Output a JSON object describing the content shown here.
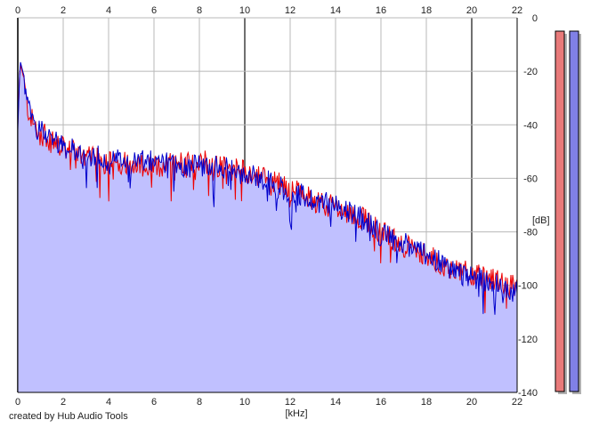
{
  "credit": "created by Hub Audio Tools",
  "colors": {
    "left_channel": "#ee0000",
    "right_channel": "#0000cc",
    "fill": "#c0c0ff",
    "meter_left": "#e87a7a",
    "meter_right": "#8080e6",
    "grid_minor": "#b8b8b8",
    "grid_major": "#707070"
  },
  "chart_data": {
    "type": "area",
    "title": "",
    "xlabel": "[kHz]",
    "ylabel": "[dB]",
    "xlim": [
      0,
      22
    ],
    "ylim": [
      -140,
      0
    ],
    "x_ticks": [
      "0",
      "2",
      "4",
      "6",
      "8",
      "10",
      "12",
      "14",
      "16",
      "18",
      "20",
      "22"
    ],
    "y_ticks": [
      "0",
      "-20",
      "-40",
      "-60",
      "-80",
      "-100",
      "-120",
      "-140"
    ],
    "grid": true,
    "legend": "none",
    "x": [
      0,
      0.1,
      0.25,
      0.4,
      0.7,
      1,
      1.5,
      2,
      3,
      4,
      5,
      6,
      7,
      8,
      9,
      10,
      11,
      12,
      13,
      14,
      14.4,
      15,
      16,
      17,
      18,
      19,
      20,
      21,
      22
    ],
    "series": [
      {
        "values": [
          -40,
          -17,
          -22,
          -33,
          -40,
          -43,
          -46,
          -49,
          -52,
          -54,
          -54,
          -56,
          -54,
          -53,
          -56,
          -57,
          -60,
          -64,
          -68,
          -71,
          -73,
          -74,
          -80,
          -85,
          -89,
          -93,
          -96,
          -98,
          -101
        ]
      },
      {
        "values": [
          -42,
          -16,
          -21,
          -32,
          -40,
          -42,
          -44,
          -48,
          -51,
          -53,
          -54,
          -54,
          -55,
          -55,
          -56,
          -58,
          -61,
          -65,
          -68,
          -70,
          -71,
          -74,
          -81,
          -84,
          -88,
          -94,
          -97,
          -99,
          -103
        ]
      }
    ],
    "meters": [
      {
        "level_db": -140
      },
      {
        "level_db": -140
      }
    ]
  }
}
